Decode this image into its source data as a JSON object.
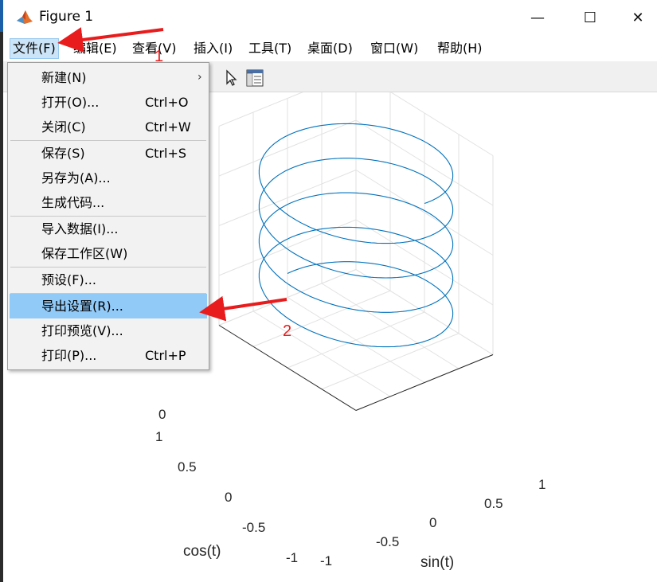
{
  "window": {
    "title": "Figure 1",
    "minimize": "—",
    "maximize": "☐",
    "close": "✕"
  },
  "menubar": {
    "items": [
      "文件(F)",
      "编辑(E)",
      "查看(V)",
      "插入(I)",
      "工具(T)",
      "桌面(D)",
      "窗口(W)",
      "帮助(H)"
    ]
  },
  "file_menu": {
    "items": [
      {
        "label": "新建(N)",
        "shortcut": "",
        "submenu": true
      },
      {
        "label": "打开(O)...",
        "shortcut": "Ctrl+O"
      },
      {
        "label": "关闭(C)",
        "shortcut": "Ctrl+W"
      },
      {
        "label": "保存(S)",
        "shortcut": "Ctrl+S"
      },
      {
        "label": "另存为(A)...",
        "shortcut": ""
      },
      {
        "label": "生成代码...",
        "shortcut": ""
      },
      {
        "label": "导入数据(I)...",
        "shortcut": ""
      },
      {
        "label": "保存工作区(W)",
        "shortcut": ""
      },
      {
        "label": "预设(F)...",
        "shortcut": ""
      },
      {
        "label": "导出设置(R)...",
        "shortcut": "",
        "highlighted": true
      },
      {
        "label": "打印预览(V)...",
        "shortcut": ""
      },
      {
        "label": "打印(P)...",
        "shortcut": "Ctrl+P"
      }
    ]
  },
  "annotations": {
    "step1": "1",
    "step2": "2",
    "color": "#e81c1c"
  },
  "plot": {
    "xlabel": "sin(t)",
    "ylabel": "cos(t)",
    "x_ticks": [
      "-1",
      "-0.5",
      "0",
      "0.5",
      "1"
    ],
    "y_ticks": [
      "1",
      "0.5",
      "0",
      "-0.5",
      "-1"
    ],
    "z_tick_visible": "0",
    "line_color": "#0072bd"
  },
  "chart_data": {
    "type": "line",
    "title": "",
    "xlabel": "sin(t)",
    "ylabel": "cos(t)",
    "series": [
      {
        "x": "sin(t)",
        "y": "cos(t)",
        "z": "t",
        "turns": 4.5
      }
    ],
    "xlim": [
      -1,
      1
    ],
    "ylim": [
      -1,
      1
    ],
    "grid": true
  }
}
